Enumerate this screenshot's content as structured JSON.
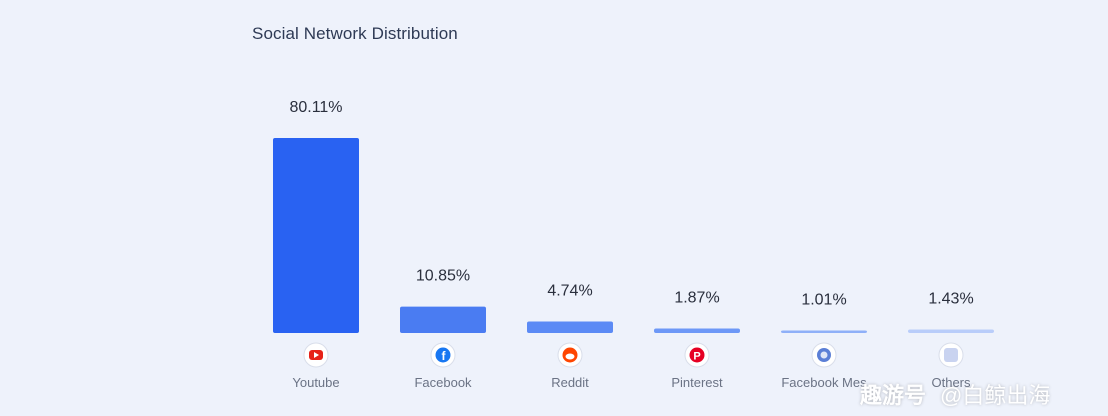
{
  "title": "Social Network Distribution",
  "watermark": {
    "brand": "趣游号",
    "handle": "@白鲸出海"
  },
  "chart_data": {
    "type": "bar",
    "title": "Social Network Distribution",
    "categories": [
      "Youtube",
      "Facebook",
      "Reddit",
      "Pinterest",
      "Facebook Mes",
      "Others"
    ],
    "values": [
      80.11,
      10.85,
      4.74,
      1.87,
      1.01,
      1.43
    ],
    "value_labels": [
      "80.11%",
      "10.85%",
      "4.74%",
      "1.87%",
      "1.01%",
      "1.43%"
    ],
    "ylim": [
      0,
      80.11
    ],
    "grid": false,
    "legend": "none",
    "icons": [
      "youtube-icon",
      "facebook-icon",
      "reddit-icon",
      "pinterest-icon",
      "facebook-messenger-icon",
      "others-icon"
    ],
    "colors": [
      "#2962f2",
      "#4a7cf2",
      "#5b8af5",
      "#6d98f7",
      "#8fb0f8",
      "#b9cdfa"
    ],
    "icon_colors": [
      "#e62117",
      "#1877f2",
      "#ff4500",
      "#e60023",
      "#5b7fd6",
      "#c9d3f0"
    ]
  }
}
